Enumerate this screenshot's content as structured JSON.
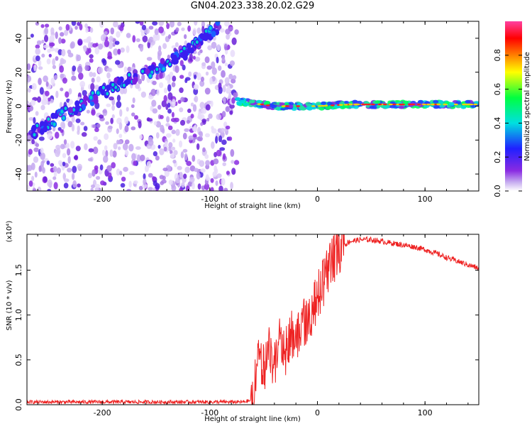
{
  "page": {
    "title": "GN04.2023.338.20.02.G29"
  },
  "chart_data": [
    {
      "type": "heatmap",
      "title": "",
      "xlabel": "Height of straight line (km)",
      "ylabel": "Frequency (Hz)",
      "xlim": [
        -270,
        150
      ],
      "ylim": [
        -50,
        50
      ],
      "x_ticks": [
        -200,
        -100,
        0,
        100
      ],
      "y_ticks": [
        -40,
        -20,
        0,
        20,
        40
      ],
      "colorbar": {
        "label": "Normalized spectral amplitude",
        "range": [
          0,
          1
        ],
        "ticks": [
          0.0,
          0.2,
          0.4,
          0.6,
          0.8
        ],
        "tick_labels": [
          "0.0",
          "0.2",
          "0.4",
          "0.6",
          "0.8"
        ],
        "colors": [
          "#ffffff",
          "#c8b0f0",
          "#8a2be2",
          "#2020ff",
          "#00e0e0",
          "#00ff40",
          "#ffff00",
          "#ff8000",
          "#ff0000",
          "#ff40a0"
        ]
      },
      "ridge_segments": [
        {
          "x": [
            -265,
            -240,
            -200,
            -180,
            -150,
            -130,
            -110,
            -100,
            -90
          ],
          "y": [
            -16,
            -6,
            8,
            15,
            22,
            28,
            38,
            43,
            48
          ]
        },
        {
          "x": [
            -75,
            -40,
            0,
            30,
            60,
            100,
            150
          ],
          "y": [
            3,
            0,
            0,
            1,
            1,
            1,
            1
          ]
        }
      ],
      "scatter_region_x": [
        -270,
        -75
      ]
    },
    {
      "type": "line",
      "title": "",
      "xlabel": "Height of straight line (km)",
      "ylabel": "SNR (10 * v/v)",
      "y_scale_note": "(x10⁴)",
      "xlim": [
        -270,
        150
      ],
      "ylim": [
        0,
        1.9
      ],
      "x_ticks": [
        -200,
        -100,
        0,
        100
      ],
      "y_ticks": [
        0.0,
        0.5,
        1.0,
        1.5
      ],
      "y_tick_labels": [
        "0.0",
        "0.5",
        "1.0",
        "1.5"
      ],
      "series": [
        {
          "color": "#ee2222",
          "x": [
            -270,
            -240,
            -200,
            -150,
            -100,
            -70,
            -60,
            -55,
            -50,
            -45,
            -40,
            -35,
            -30,
            -25,
            -20,
            -15,
            -10,
            -5,
            0,
            5,
            10,
            15,
            20,
            25,
            30,
            40,
            50,
            60,
            70,
            80,
            90,
            100,
            110,
            120,
            130,
            140,
            150
          ],
          "y": [
            0.03,
            0.03,
            0.03,
            0.03,
            0.03,
            0.03,
            0.05,
            0.5,
            0.4,
            0.6,
            0.45,
            0.75,
            0.55,
            0.8,
            0.7,
            0.95,
            0.9,
            1.05,
            1.2,
            1.35,
            1.5,
            1.62,
            1.72,
            1.78,
            1.82,
            1.84,
            1.84,
            1.82,
            1.8,
            1.78,
            1.76,
            1.73,
            1.69,
            1.64,
            1.6,
            1.56,
            1.52
          ]
        }
      ]
    }
  ]
}
